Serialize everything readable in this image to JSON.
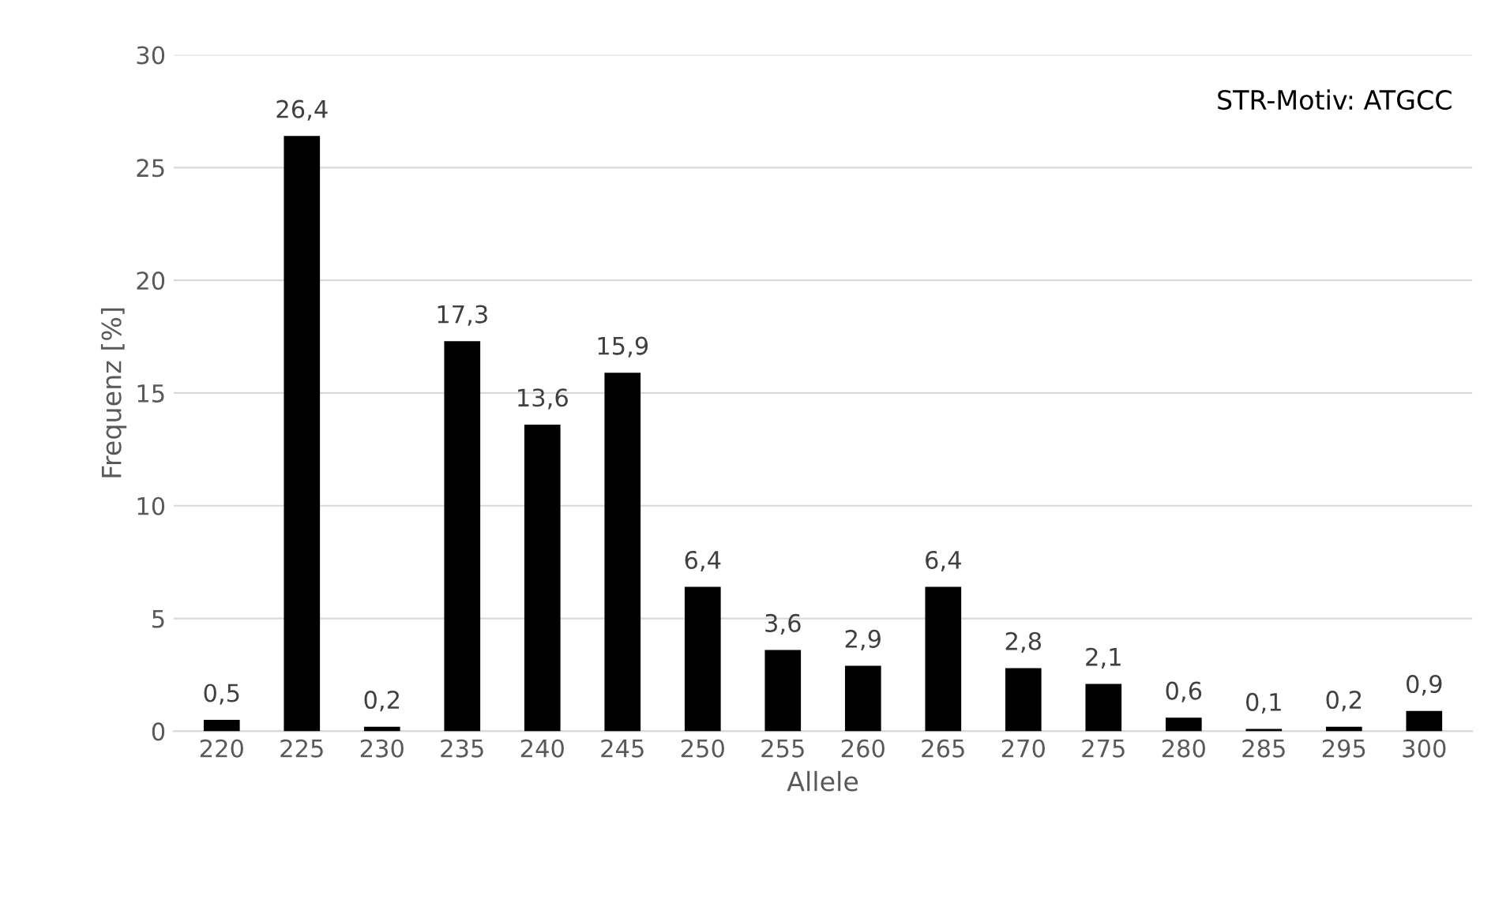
{
  "chart_data": {
    "type": "bar",
    "xlabel": "Allele",
    "ylabel": "Frequenz [%]",
    "annotations": [
      "STR-Motiv: ATGCC"
    ],
    "categories": [
      "220",
      "225",
      "230",
      "235",
      "240",
      "245",
      "250",
      "255",
      "260",
      "265",
      "270",
      "275",
      "280",
      "285",
      "295",
      "300"
    ],
    "values": [
      0.5,
      26.4,
      0.2,
      17.3,
      13.6,
      15.9,
      6.4,
      3.6,
      2.9,
      6.4,
      2.8,
      2.1,
      0.6,
      0.1,
      0.2,
      0.9
    ],
    "value_labels": [
      "0,5",
      "26,4",
      "0,2",
      "17,3",
      "13,6",
      "15,9",
      "6,4",
      "3,6",
      "2,9",
      "6,4",
      "2,8",
      "2,1",
      "0,6",
      "0,1",
      "0,2",
      "0,9"
    ],
    "color": "#000000",
    "ylim": [
      0,
      30
    ],
    "yticks": [
      0,
      5,
      10,
      15,
      20,
      25,
      30
    ],
    "grid": "y"
  }
}
